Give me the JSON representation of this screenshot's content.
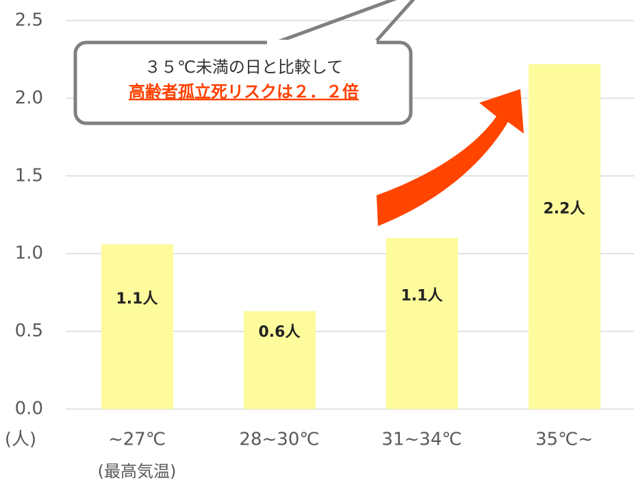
{
  "chart_data": {
    "type": "bar",
    "categories": [
      "~27℃",
      "28~30℃",
      "31~34℃",
      "35℃~"
    ],
    "values": [
      1.06,
      0.63,
      1.1,
      2.22
    ],
    "value_labels": [
      "1.1人",
      "0.6人",
      "1.1人",
      "2.2人"
    ],
    "color": "#fdfb9c",
    "ylim": [
      0,
      2.5
    ],
    "yticks": [
      {
        "value": 0,
        "label": "0.0"
      },
      0.5,
      {
        "value": 1,
        "label": "1.0"
      },
      1.5,
      {
        "value": 2,
        "label": "2.0"
      },
      2.5
    ],
    "grid": true,
    "y_label": "(人)",
    "x_label": "(最高気温)",
    "annotations": [
      "３５℃未満の日と比較して",
      "高齢者孤立死リスクは２．２倍"
    ]
  }
}
